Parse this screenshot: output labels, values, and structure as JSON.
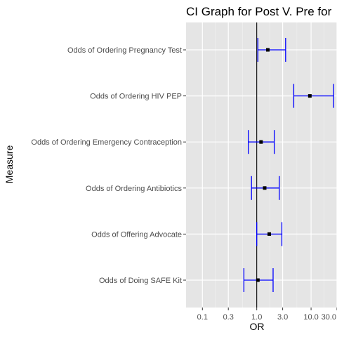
{
  "chart_data": {
    "type": "errorbar",
    "title": "CI Graph for Post V. Pre for",
    "xlabel": "OR",
    "ylabel": "Measure",
    "x_scale": "log10",
    "xlim": [
      0.05,
      30
    ],
    "x_ticks": [
      {
        "value": 0.1,
        "label": "0.1"
      },
      {
        "value": 0.3,
        "label": "0.3"
      },
      {
        "value": 1.0,
        "label": "1.0"
      },
      {
        "value": 3.0,
        "label": "3.0"
      },
      {
        "value": 10.0,
        "label": "10.0"
      },
      {
        "value": 30.0,
        "label": "30.0"
      }
    ],
    "reference_line": 1.0,
    "grid": true,
    "categories": [
      "Odds of Ordering Pregnancy Test",
      "Odds of Ordering HIV PEP",
      "Odds of Ordering Emergency Contraception",
      "Odds of Ordering Antibiotics",
      "Odds of Offering Advocate",
      "Odds of Doing SAFE Kit"
    ],
    "points": [
      {
        "measure": "Odds of Ordering Pregnancy Test",
        "or": 1.6,
        "lower": 1.05,
        "upper": 3.4
      },
      {
        "measure": "Odds of Ordering HIV PEP",
        "or": 9.5,
        "lower": 4.8,
        "upper": 26
      },
      {
        "measure": "Odds of Ordering Emergency Contraception",
        "or": 1.2,
        "lower": 0.7,
        "upper": 2.1
      },
      {
        "measure": "Odds of Ordering Antibiotics",
        "or": 1.4,
        "lower": 0.8,
        "upper": 2.6
      },
      {
        "measure": "Odds of Offering Advocate",
        "or": 1.7,
        "lower": 1.0,
        "upper": 2.9
      },
      {
        "measure": "Odds of Doing SAFE Kit",
        "or": 1.05,
        "lower": 0.58,
        "upper": 2.0
      }
    ],
    "colors": {
      "panel": "#e5e5e5",
      "grid_major": "#ffffff",
      "grid_minor": "#f0f0f0",
      "errorbar": "#0000ff",
      "point": "#000000",
      "reference_line": "#000000"
    }
  }
}
